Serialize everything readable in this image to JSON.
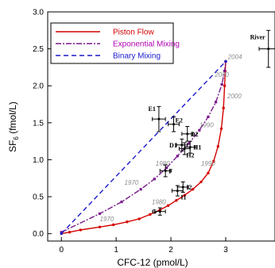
{
  "chart_data": {
    "type": "line",
    "xlabel": "CFC-12 (pmol/L)",
    "ylabel_main": "SF",
    "ylabel_sub": "6",
    "ylabel_rest": " (fmol/L)",
    "xlim": [
      -0.25,
      3.9
    ],
    "ylim": [
      -0.1,
      3.0
    ],
    "x_ticks": [
      0,
      1,
      2,
      3,
      4
    ],
    "y_ticks": [
      0.0,
      0.5,
      1.0,
      1.5,
      2.0,
      2.5,
      3.0
    ],
    "x_tick_labels": [
      "0",
      "1",
      "2",
      "3",
      "4"
    ],
    "y_tick_labels": [
      "0.0",
      "0.5",
      "1.0",
      "1.5",
      "2.0",
      "2.5",
      "3.0"
    ],
    "legend": {
      "position": "top-left",
      "entries": [
        "Piston Flow",
        "Exponential Mixing",
        "Binary Mixing"
      ]
    },
    "series": [
      {
        "name": "Piston Flow",
        "color": "#d40000",
        "style": "solid",
        "points": [
          [
            0.0,
            0.0
          ],
          [
            0.15,
            0.02
          ],
          [
            0.35,
            0.05
          ],
          [
            0.7,
            0.09
          ],
          [
            0.95,
            0.12
          ],
          [
            1.2,
            0.16
          ],
          [
            1.42,
            0.2
          ],
          [
            1.62,
            0.26
          ],
          [
            1.8,
            0.32
          ],
          [
            1.95,
            0.38
          ],
          [
            2.1,
            0.45
          ],
          [
            2.25,
            0.52
          ],
          [
            2.4,
            0.6
          ],
          [
            2.55,
            0.7
          ],
          [
            2.68,
            0.82
          ],
          [
            2.78,
            0.98
          ],
          [
            2.86,
            1.18
          ],
          [
            2.92,
            1.42
          ],
          [
            2.96,
            1.7
          ],
          [
            2.98,
            2.0
          ],
          [
            2.99,
            2.2
          ],
          [
            3.0,
            2.33
          ]
        ]
      },
      {
        "name": "Exponential Mixing",
        "color": "#7a1a8c",
        "style": "dashdot",
        "points": [
          [
            0.0,
            0.02
          ],
          [
            0.7,
            0.27
          ],
          [
            1.1,
            0.43
          ],
          [
            1.45,
            0.6
          ],
          [
            1.7,
            0.74
          ],
          [
            1.92,
            0.89
          ],
          [
            2.12,
            1.05
          ],
          [
            2.33,
            1.22
          ],
          [
            2.52,
            1.4
          ],
          [
            2.68,
            1.58
          ],
          [
            2.82,
            1.78
          ],
          [
            2.93,
            2.02
          ],
          [
            2.98,
            2.2
          ],
          [
            3.0,
            2.33
          ]
        ]
      },
      {
        "name": "Binary Mixing",
        "color": "#1a1acc",
        "style": "dashed",
        "points": [
          [
            0.0,
            0.0
          ],
          [
            3.0,
            2.33
          ]
        ]
      }
    ],
    "samples": [
      {
        "label": "E1",
        "x": 1.78,
        "y": 1.55,
        "xerr": 0.12,
        "yerr": 0.17
      },
      {
        "label": "E2",
        "x": 2.05,
        "y": 1.48,
        "xerr": 0.1,
        "yerr": 0.1
      },
      {
        "label": "D2",
        "x": 2.3,
        "y": 1.35,
        "xerr": 0.1,
        "yerr": 0.1
      },
      {
        "label": "D1",
        "x": 2.2,
        "y": 1.2,
        "xerr": 0.1,
        "yerr": 0.08
      },
      {
        "label": "H2",
        "x": 2.25,
        "y": 1.15,
        "xerr": 0.1,
        "yerr": 0.08
      },
      {
        "label": "H1",
        "x": 2.35,
        "y": 1.17,
        "xerr": 0.1,
        "yerr": 0.08
      },
      {
        "label": "F",
        "x": 1.9,
        "y": 0.85,
        "xerr": 0.1,
        "yerr": 0.08
      },
      {
        "label": "I2",
        "x": 2.22,
        "y": 0.63,
        "xerr": 0.1,
        "yerr": 0.07
      },
      {
        "label": "I1",
        "x": 2.12,
        "y": 0.58,
        "xerr": 0.1,
        "yerr": 0.07
      },
      {
        "label": "G",
        "x": 1.8,
        "y": 0.3,
        "xerr": 0.1,
        "yerr": 0.05
      },
      {
        "label": "River",
        "x": 3.78,
        "y": 2.5,
        "xerr": 0.17,
        "yerr": 0.25
      }
    ],
    "year_labels": [
      {
        "text": "2004",
        "x": 3.04,
        "y": 2.36
      },
      {
        "text": "2000",
        "x": 2.8,
        "y": 2.12
      },
      {
        "text": "2000",
        "x": 3.03,
        "y": 1.83
      },
      {
        "text": "1990",
        "x": 2.52,
        "y": 1.44
      },
      {
        "text": "1990",
        "x": 2.55,
        "y": 0.92
      },
      {
        "text": "1980",
        "x": 1.72,
        "y": 0.92
      },
      {
        "text": "1970",
        "x": 1.15,
        "y": 0.66
      },
      {
        "text": "1980",
        "x": 1.65,
        "y": 0.4
      },
      {
        "text": "1970",
        "x": 0.7,
        "y": 0.17
      }
    ]
  }
}
